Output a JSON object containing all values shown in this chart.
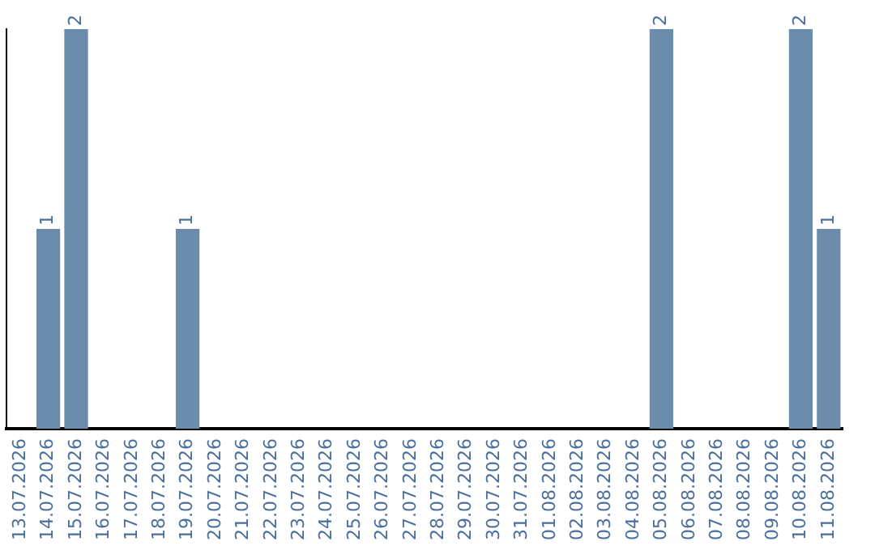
{
  "chart_data": {
    "type": "bar",
    "categories": [
      "13.07.2026",
      "14.07.2026",
      "15.07.2026",
      "16.07.2026",
      "17.07.2026",
      "18.07.2026",
      "19.07.2026",
      "20.07.2026",
      "21.07.2026",
      "22.07.2026",
      "23.07.2026",
      "24.07.2026",
      "25.07.2026",
      "26.07.2026",
      "27.07.2026",
      "28.07.2026",
      "29.07.2026",
      "30.07.2026",
      "31.07.2026",
      "01.08.2026",
      "02.08.2026",
      "03.08.2026",
      "04.08.2026",
      "05.08.2026",
      "06.08.2026",
      "07.08.2026",
      "08.08.2026",
      "09.08.2026",
      "10.08.2026",
      "11.08.2026"
    ],
    "values": [
      0,
      1,
      2,
      0,
      0,
      0,
      1,
      0,
      0,
      0,
      0,
      0,
      0,
      0,
      0,
      0,
      0,
      0,
      0,
      0,
      0,
      0,
      0,
      2,
      0,
      0,
      0,
      0,
      2,
      1
    ],
    "value_labels": [
      null,
      "1",
      "2",
      null,
      null,
      null,
      "1",
      null,
      null,
      null,
      null,
      null,
      null,
      null,
      null,
      null,
      null,
      null,
      null,
      null,
      null,
      null,
      null,
      "2",
      null,
      null,
      null,
      null,
      "2",
      "1"
    ],
    "color": "#6b8cab",
    "grid": false,
    "legend": false,
    "tick_labels": "x"
  }
}
